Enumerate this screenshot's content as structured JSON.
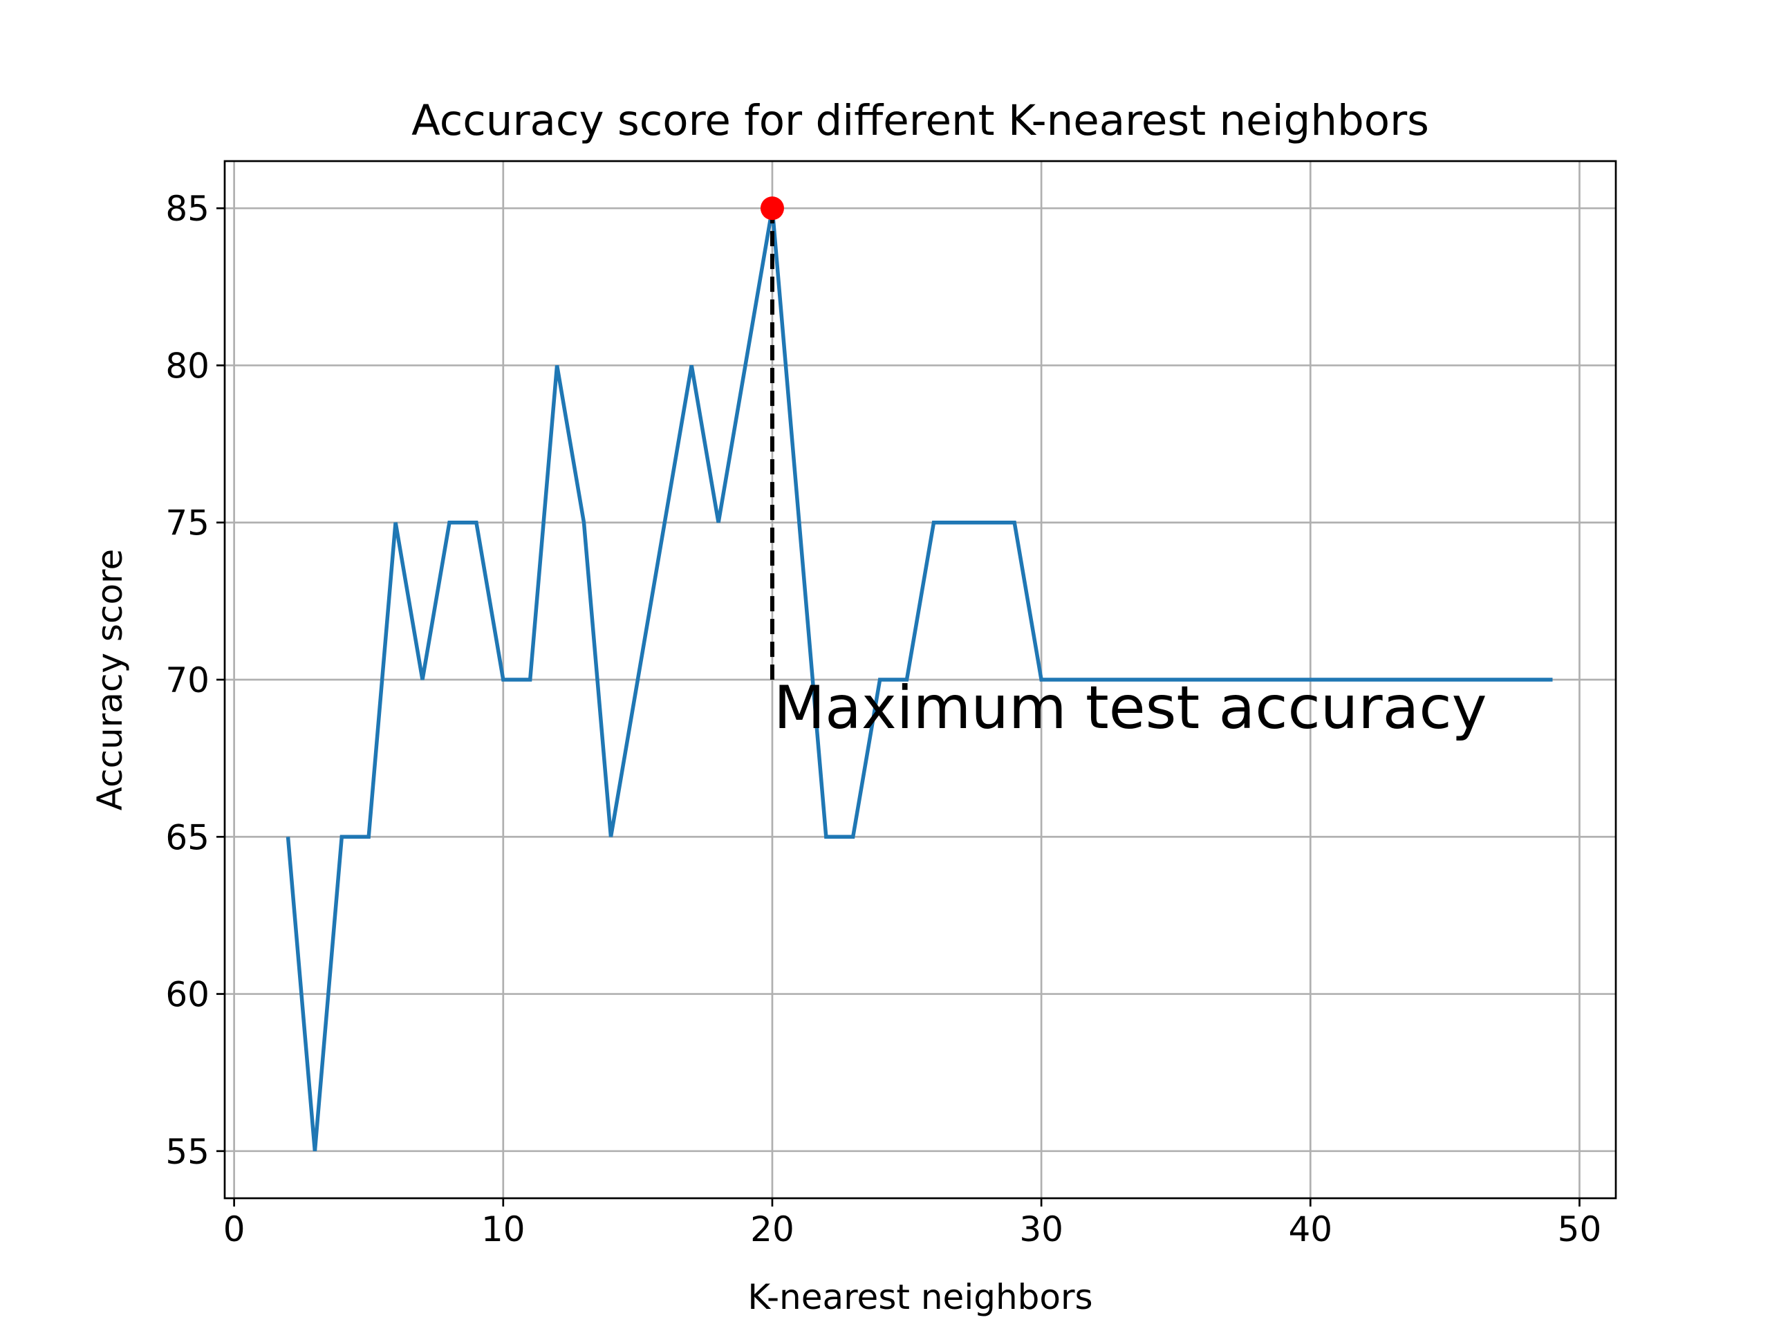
{
  "chart_data": {
    "type": "line",
    "title": "Accuracy score for different K-nearest neighbors",
    "xlabel": "K-nearest neighbors",
    "ylabel": "Accuracy score",
    "xlim": [
      -0.35,
      51.35
    ],
    "ylim": [
      53.5,
      86.5
    ],
    "xticks": [
      0,
      10,
      20,
      30,
      40,
      50
    ],
    "yticks": [
      55,
      60,
      65,
      70,
      75,
      80,
      85
    ],
    "grid": true,
    "series": [
      {
        "color": "#1f77b4",
        "x": [
          2,
          3,
          4,
          5,
          6,
          7,
          8,
          9,
          10,
          11,
          12,
          13,
          14,
          15,
          16,
          17,
          18,
          19,
          20,
          21,
          22,
          23,
          24,
          25,
          26,
          27,
          28,
          29,
          30,
          31,
          32,
          33,
          34,
          35,
          36,
          37,
          38,
          39,
          40,
          41,
          42,
          43,
          44,
          45,
          46,
          47,
          48,
          49
        ],
        "y": [
          65,
          55,
          65,
          65,
          75,
          70,
          75,
          75,
          70,
          70,
          80,
          75,
          65,
          70,
          75,
          80,
          75,
          80,
          85,
          75,
          65,
          65,
          70,
          70,
          75,
          75,
          75,
          75,
          70,
          70,
          70,
          70,
          70,
          70,
          70,
          70,
          70,
          70,
          70,
          70,
          70,
          70,
          70,
          70,
          70,
          70,
          70,
          70
        ]
      }
    ],
    "max_point": {
      "x": 20,
      "y": 85,
      "color": "#ff0000"
    },
    "annotation": {
      "text": "Maximum test accuracy",
      "x": 20,
      "y": 70,
      "line_from_y": 85,
      "line_style": "dashed",
      "line_color": "#000000"
    }
  }
}
